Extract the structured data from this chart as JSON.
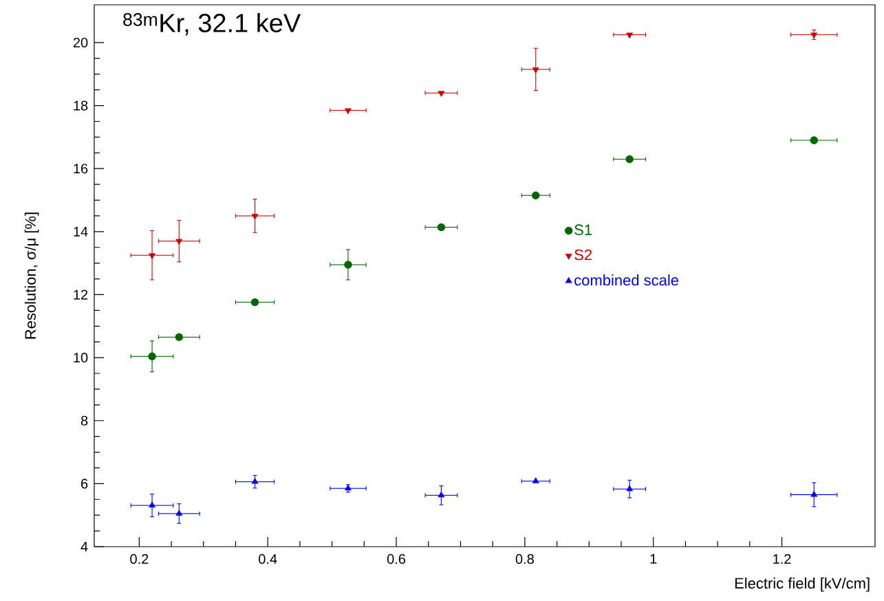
{
  "chart_data": {
    "type": "scatter",
    "title": "$^{83m}$Kr, 32.1 keV",
    "xlabel": "Electric field [kV/cm]",
    "ylabel": "Resolution, σ/μ [%]",
    "x": [
      0.22,
      0.262,
      0.38,
      0.525,
      0.67,
      0.817,
      0.963,
      1.25
    ],
    "series": [
      {
        "name": "S1",
        "color": "#006600",
        "marker": "circle",
        "values": [
          10.04,
          10.65,
          11.76,
          12.95,
          14.14,
          15.15,
          16.3,
          16.9
        ],
        "errors": [
          0.49,
          null,
          null,
          0.48,
          null,
          null,
          null,
          null
        ],
        "xerrors": [
          0.033,
          0.032,
          0.03,
          0.028,
          0.025,
          0.022,
          0.025,
          0.036
        ]
      },
      {
        "name": "S2",
        "color": "#cc0000",
        "marker": "triangle-down",
        "values": [
          13.25,
          13.7,
          14.5,
          17.85,
          18.4,
          19.15,
          20.25,
          20.25
        ],
        "errors": [
          0.78,
          0.66,
          0.53,
          null,
          null,
          0.67,
          null,
          0.15
        ],
        "xerrors": [
          0.033,
          0.032,
          0.03,
          0.028,
          0.025,
          0.022,
          0.025,
          0.036
        ]
      },
      {
        "name": "combined scale",
        "color": "#0000ff",
        "marker": "triangle",
        "values": [
          5.31,
          5.05,
          6.06,
          5.85,
          5.63,
          6.08,
          5.83,
          5.65
        ],
        "errors": [
          0.36,
          0.31,
          0.2,
          0.12,
          0.3,
          null,
          0.28,
          0.38
        ],
        "xerrors": [
          0.033,
          0.032,
          0.03,
          0.028,
          0.025,
          0.022,
          0.025,
          0.036
        ]
      }
    ],
    "xlim": [
      0.13,
      1.345
    ],
    "ylim": [
      4,
      21.2
    ],
    "xticks": [
      0.2,
      0.4,
      0.6,
      0.8,
      1,
      1.2
    ],
    "yticks": [
      4,
      6,
      8,
      10,
      12,
      14,
      16,
      18,
      20
    ],
    "legend": "right"
  }
}
